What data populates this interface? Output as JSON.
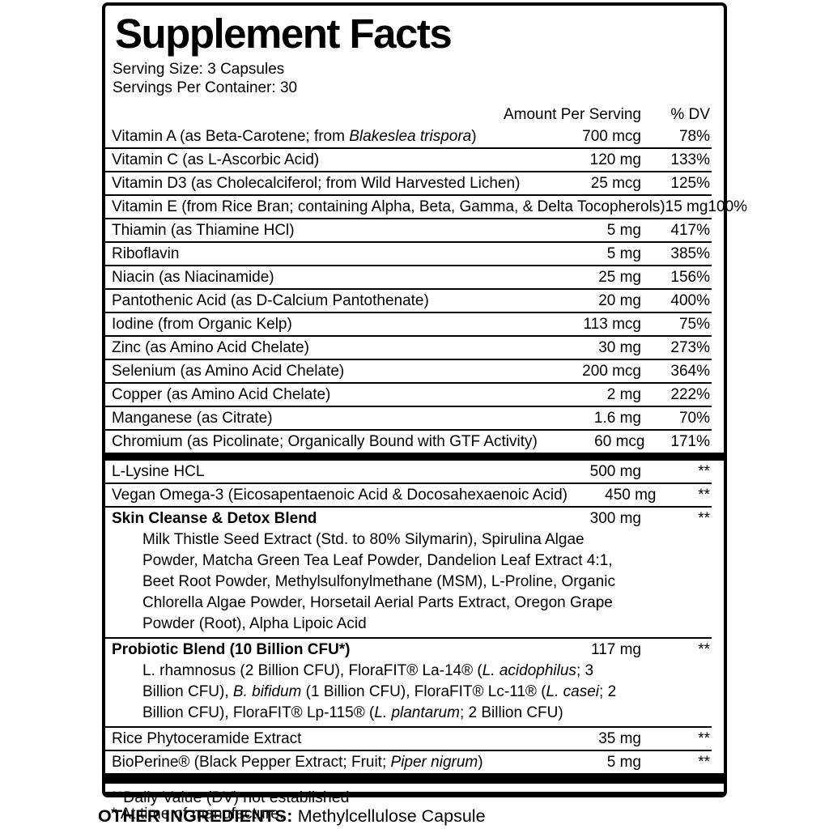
{
  "panel": {
    "title": "Supplement Facts",
    "serving_size": "Serving Size: 3 Capsules",
    "servings_per_container": "Servings Per Container: 30",
    "header": {
      "amount": "Amount Per Serving",
      "dv": "% DV"
    }
  },
  "rows": [
    {
      "name": [
        {
          "t": "Vitamin A (as Beta-Carotene; from "
        },
        {
          "t": "Blakeslea trispora",
          "i": true
        },
        {
          "t": ")"
        }
      ],
      "amount": "700 mcg",
      "dv": "78%"
    },
    {
      "name": [
        {
          "t": "Vitamin C (as L-Ascorbic Acid)"
        }
      ],
      "amount": "120 mg",
      "dv": "133%"
    },
    {
      "name": [
        {
          "t": "Vitamin D3 (as Cholecalciferol; from Wild Harvested Lichen)"
        }
      ],
      "amount": "25 mcg",
      "dv": "125%"
    },
    {
      "name": [
        {
          "t": "Vitamin E (from Rice Bran; containing Alpha, Beta, Gamma, & Delta Tocopherols)"
        }
      ],
      "amount": "15 mg",
      "dv": "100%"
    },
    {
      "name": [
        {
          "t": "Thiamin (as Thiamine HCl)"
        }
      ],
      "amount": "5 mg",
      "dv": "417%"
    },
    {
      "name": [
        {
          "t": "Riboflavin"
        }
      ],
      "amount": "5 mg",
      "dv": "385%"
    },
    {
      "name": [
        {
          "t": "Niacin (as Niacinamide)"
        }
      ],
      "amount": "25 mg",
      "dv": "156%"
    },
    {
      "name": [
        {
          "t": "Pantothenic Acid (as D-Calcium Pantothenate)"
        }
      ],
      "amount": "20 mg",
      "dv": "400%"
    },
    {
      "name": [
        {
          "t": "Iodine (from Organic Kelp)"
        }
      ],
      "amount": "113 mcg",
      "dv": "75%"
    },
    {
      "name": [
        {
          "t": "Zinc (as Amino Acid Chelate)"
        }
      ],
      "amount": "30 mg",
      "dv": "273%"
    },
    {
      "name": [
        {
          "t": "Selenium (as Amino Acid Chelate)"
        }
      ],
      "amount": "200 mcg",
      "dv": "364%"
    },
    {
      "name": [
        {
          "t": "Copper (as Amino Acid Chelate)"
        }
      ],
      "amount": "2 mg",
      "dv": "222%"
    },
    {
      "name": [
        {
          "t": "Manganese (as Citrate)"
        }
      ],
      "amount": "1.6 mg",
      "dv": "70%"
    },
    {
      "name": [
        {
          "t": "Chromium (as Picolinate; Organically Bound with GTF Activity)"
        }
      ],
      "amount": "60 mcg",
      "dv": "171%"
    },
    {
      "divider": true
    },
    {
      "name": [
        {
          "t": "L-Lysine HCL"
        }
      ],
      "amount": "500 mg",
      "dv": "**"
    },
    {
      "name": [
        {
          "t": "Vegan Omega-3 (Eicosapentaenoic Acid & Docosahexaenoic Acid)"
        }
      ],
      "amount": "450 mg",
      "dv": "**"
    },
    {
      "bold": true,
      "name": [
        {
          "t": "Skin Cleanse & Detox Blend"
        }
      ],
      "amount": "300 mg",
      "dv": "**",
      "desc": [
        [
          {
            "t": "Milk Thistle Seed Extract (Std. to 80% Silymarin), Spirulina Algae"
          }
        ],
        [
          {
            "t": "Powder, Matcha Green Tea Leaf Powder, Dandelion Leaf Extract 4:1,"
          }
        ],
        [
          {
            "t": "Beet Root Powder, Methylsulfonylmethane (MSM), L-Proline, Organic"
          }
        ],
        [
          {
            "t": "Chlorella Algae Powder, Horsetail Aerial Parts Extract, Oregon Grape"
          }
        ],
        [
          {
            "t": "Powder (Root), Alpha Lipoic Acid"
          }
        ]
      ]
    },
    {
      "bold": true,
      "name": [
        {
          "t": "Probiotic Blend (10 Billion CFU*)"
        }
      ],
      "amount": "117 mg",
      "dv": "**",
      "desc": [
        [
          {
            "t": "L. rhamnosus (2 Billion CFU), FloraFIT® La-14® ("
          },
          {
            "t": "L. acidophilus",
            "i": true
          },
          {
            "t": "; 3"
          }
        ],
        [
          {
            "t": "Billion CFU), "
          },
          {
            "t": "B. bifidum",
            "i": true
          },
          {
            "t": " (1 Billion CFU), FloraFIT® Lc-11® ("
          },
          {
            "t": "L. casei",
            "i": true
          },
          {
            "t": "; 2"
          }
        ],
        [
          {
            "t": "Billion CFU), FloraFIT® Lp-115® ("
          },
          {
            "t": "L. plantarum",
            "i": true
          },
          {
            "t": "; 2 Billion CFU)"
          }
        ]
      ]
    },
    {
      "name": [
        {
          "t": "Rice Phytoceramide Extract"
        }
      ],
      "amount": "35 mg",
      "dv": "**"
    },
    {
      "name": [
        {
          "t": "BioPerine® (Black Pepper Extract; Fruit; "
        },
        {
          "t": "Piper nigrum",
          "i": true
        },
        {
          "t": ")"
        }
      ],
      "amount": "5 mg",
      "dv": "**"
    }
  ],
  "footnotes": [
    "**Daily Value (DV) not established",
    "* At time of manufacture."
  ],
  "other_ingredients": {
    "label": "OTHER INGREDIENTS:",
    "value": "Methylcellulose Capsule"
  },
  "colors": {
    "ink": "#000000",
    "background": "#ffffff"
  }
}
